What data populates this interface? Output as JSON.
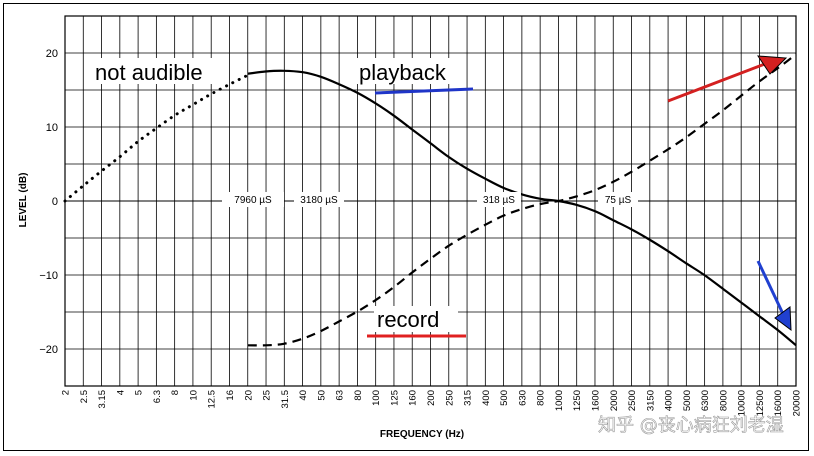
{
  "chart_data": {
    "type": "line",
    "xlabel": "FREQUENCY (Hz)",
    "ylabel": "LEVEL (dB)",
    "categories": [
      "2",
      "2.5",
      "3.15",
      "4",
      "5",
      "6.3",
      "8",
      "10",
      "12.5",
      "16",
      "20",
      "25",
      "31.5",
      "40",
      "50",
      "63",
      "80",
      "100",
      "125",
      "160",
      "200",
      "250",
      "315",
      "400",
      "500",
      "630",
      "800",
      "1000",
      "1250",
      "1600",
      "2000",
      "2500",
      "3150",
      "4000",
      "5000",
      "6300",
      "8000",
      "10000",
      "12500",
      "16000",
      "20000"
    ],
    "ylim": [
      -25,
      25
    ],
    "yticks": [
      "20",
      "10",
      "0",
      "−10",
      "−20"
    ],
    "grid": true,
    "series": [
      {
        "name": "playback",
        "style": "solid",
        "points": [
          [
            20,
            17.2
          ],
          [
            25,
            17.5
          ],
          [
            31.5,
            17.6
          ],
          [
            40,
            17.4
          ],
          [
            50,
            16.8
          ],
          [
            63,
            15.8
          ],
          [
            80,
            14.6
          ],
          [
            100,
            13.2
          ],
          [
            125,
            11.6
          ],
          [
            160,
            9.6
          ],
          [
            200,
            7.8
          ],
          [
            250,
            6.0
          ],
          [
            315,
            4.4
          ],
          [
            400,
            3.0
          ],
          [
            500,
            1.8
          ],
          [
            630,
            0.9
          ],
          [
            800,
            0.3
          ],
          [
            1000,
            0.0
          ],
          [
            1250,
            -0.5
          ],
          [
            1600,
            -1.4
          ],
          [
            2000,
            -2.6
          ],
          [
            2500,
            -3.8
          ],
          [
            3150,
            -5.2
          ],
          [
            4000,
            -6.8
          ],
          [
            5000,
            -8.4
          ],
          [
            6300,
            -10.0
          ],
          [
            8000,
            -11.9
          ],
          [
            10000,
            -13.7
          ],
          [
            12500,
            -15.5
          ],
          [
            16000,
            -17.5
          ],
          [
            20000,
            -19.5
          ]
        ]
      },
      {
        "name": "playback",
        "style": "dotted",
        "points": [
          [
            2,
            0.0
          ],
          [
            2.5,
            2.0
          ],
          [
            3.15,
            4.0
          ],
          [
            4,
            6.0
          ],
          [
            5,
            8.0
          ],
          [
            6.3,
            9.8
          ],
          [
            8,
            11.6
          ],
          [
            10,
            13.0
          ],
          [
            12.5,
            14.4
          ],
          [
            16,
            15.8
          ],
          [
            20,
            17.0
          ]
        ]
      },
      {
        "name": "record",
        "style": "dashed",
        "points": [
          [
            20,
            -19.5
          ],
          [
            25,
            -19.5
          ],
          [
            31.5,
            -19.3
          ],
          [
            40,
            -18.6
          ],
          [
            50,
            -17.6
          ],
          [
            63,
            -16.3
          ],
          [
            80,
            -14.9
          ],
          [
            100,
            -13.4
          ],
          [
            125,
            -11.7
          ],
          [
            160,
            -9.6
          ],
          [
            200,
            -7.8
          ],
          [
            250,
            -6.1
          ],
          [
            315,
            -4.6
          ],
          [
            400,
            -3.2
          ],
          [
            500,
            -2.0
          ],
          [
            630,
            -1.1
          ],
          [
            800,
            -0.4
          ],
          [
            1000,
            0.0
          ],
          [
            1250,
            0.6
          ],
          [
            1600,
            1.5
          ],
          [
            2000,
            2.6
          ],
          [
            2500,
            3.9
          ],
          [
            3150,
            5.4
          ],
          [
            4000,
            7.0
          ],
          [
            5000,
            8.6
          ],
          [
            6300,
            10.4
          ],
          [
            8000,
            12.3
          ],
          [
            10000,
            14.2
          ],
          [
            12500,
            16.1
          ],
          [
            16000,
            18.0
          ],
          [
            20000,
            19.8
          ]
        ]
      }
    ],
    "annotations": {
      "not_audible": "not audible",
      "playback": "playback",
      "record": "record",
      "tc_7960": "7960 µS",
      "tc_3180": "3180 µS",
      "tc_318": "318 µS",
      "tc_75": "75 µS"
    }
  },
  "colors": {
    "playback_underline": "#1f35c8",
    "record_underline": "#e02020",
    "red_arrow": "#d42020",
    "blue_arrow": "#2040d0",
    "grid": "#000000"
  },
  "watermark": "知乎 @丧心病狂刘老湿"
}
